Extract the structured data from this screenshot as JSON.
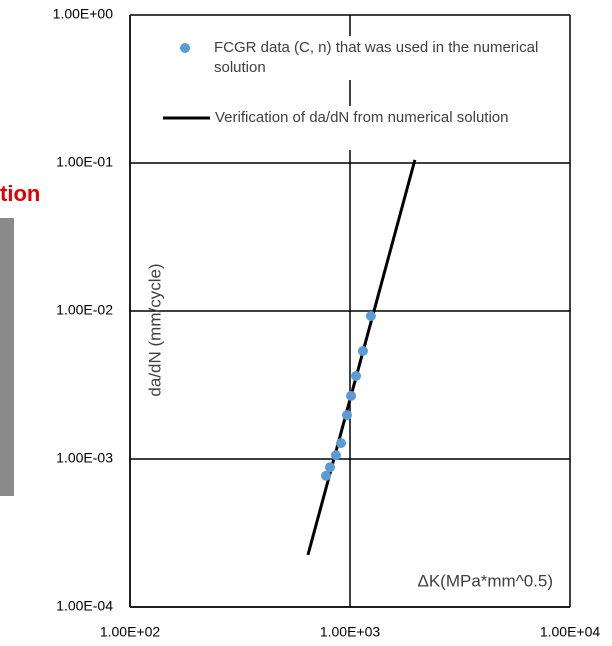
{
  "background_text": "tion",
  "chart_data": {
    "type": "scatter",
    "x_label": "ΔK(MPa*mm^0.5)",
    "y_label": "da/dN (mm/cycle)",
    "xscale": "log",
    "yscale": "log",
    "grid": true,
    "xlim": [
      100,
      10000
    ],
    "xticks": [
      {
        "value": 100,
        "label": "1.00E+02"
      },
      {
        "value": 1000,
        "label": "1.00E+03"
      },
      {
        "value": 10000,
        "label": "1.00E+04"
      }
    ],
    "ylim": [
      0.0001,
      1
    ],
    "yticks": [
      {
        "value": 0.0001,
        "label": "1.00E-04"
      },
      {
        "value": 0.001,
        "label": "1.00E-03"
      },
      {
        "value": 0.01,
        "label": "1.00E-02"
      },
      {
        "value": 0.1,
        "label": "1.00E-01"
      },
      {
        "value": 1,
        "label": "1.00E+00"
      }
    ],
    "series": [
      {
        "name": "FCGR data (C, n) that was used in the numerical solution",
        "type": "scatter",
        "color": "#5b9bd5",
        "x": [
          778,
          811,
          863,
          910,
          969,
          1011,
          1065,
          1145,
          1245
        ],
        "values": [
          0.00077,
          0.00088,
          0.00106,
          0.00128,
          0.00198,
          0.00267,
          0.00364,
          0.00537,
          0.00925
        ]
      },
      {
        "name": "Verification of da/dN from numerical solution",
        "type": "line",
        "color": "#000000",
        "x": [
          644,
          1972
        ],
        "values": [
          0.000225,
          0.105
        ]
      }
    ]
  }
}
